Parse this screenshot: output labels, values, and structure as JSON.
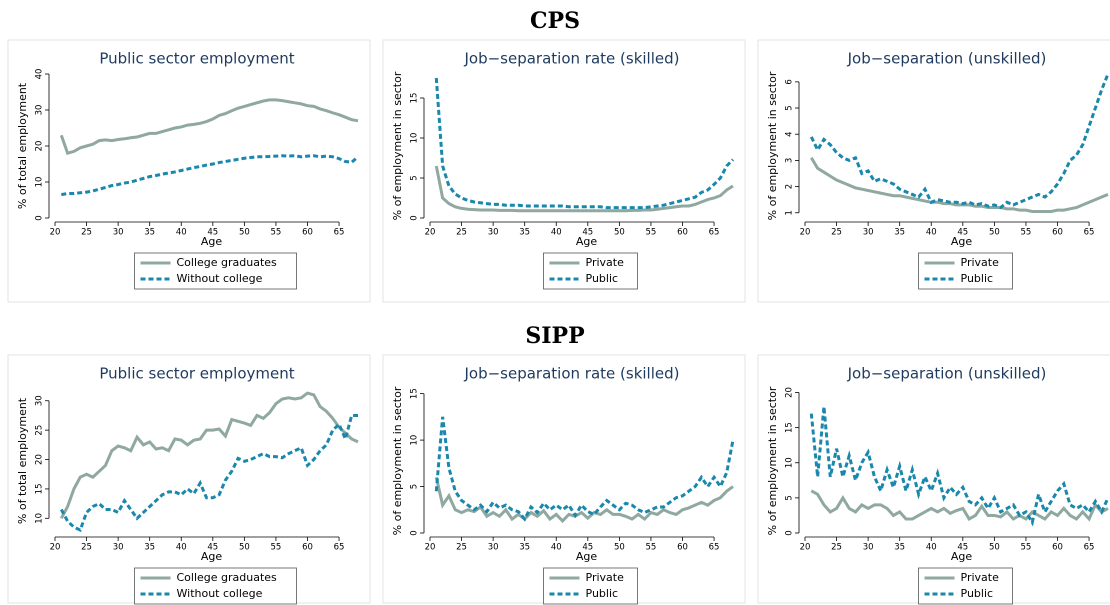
{
  "section_titles": [
    "CPS",
    "SIPP"
  ],
  "chart_data": [
    {
      "type": "line",
      "title": "Public sector employment",
      "xlabel": "Age",
      "ylabel": "% of total employment",
      "x": [
        21,
        22,
        23,
        24,
        25,
        26,
        27,
        28,
        29,
        30,
        31,
        32,
        33,
        34,
        35,
        36,
        37,
        38,
        39,
        40,
        41,
        42,
        43,
        44,
        45,
        46,
        47,
        48,
        49,
        50,
        51,
        52,
        53,
        54,
        55,
        56,
        57,
        58,
        59,
        60,
        61,
        62,
        63,
        64,
        65,
        66,
        67,
        68
      ],
      "xlim": [
        20,
        68
      ],
      "xticks": [
        20,
        25,
        30,
        35,
        40,
        45,
        50,
        55,
        60,
        65
      ],
      "ylim": [
        0,
        40
      ],
      "yticks": [
        0,
        10,
        20,
        30,
        40
      ],
      "series": [
        {
          "name": "College graduates",
          "color": "#8fa8a0",
          "dash": false,
          "values": [
            23,
            18,
            18.5,
            19.5,
            20,
            20.5,
            21.5,
            21.7,
            21.5,
            21.8,
            22,
            22.3,
            22.5,
            23,
            23.5,
            23.5,
            24,
            24.5,
            25,
            25.3,
            25.8,
            26,
            26.3,
            26.8,
            27.5,
            28.5,
            29,
            29.8,
            30.5,
            31,
            31.5,
            32,
            32.5,
            32.8,
            32.8,
            32.6,
            32.3,
            32,
            31.7,
            31.2,
            31,
            30.3,
            29.8,
            29.2,
            28.7,
            28,
            27.3,
            27
          ]
        },
        {
          "name": "Without college",
          "color": "#1a87ad",
          "dash": true,
          "values": [
            6.5,
            6.8,
            6.8,
            7,
            7.2,
            7.5,
            8,
            8.5,
            9,
            9.3,
            9.7,
            10,
            10.5,
            11,
            11.5,
            11.8,
            12.2,
            12.5,
            12.8,
            13.2,
            13.6,
            14,
            14.3,
            14.7,
            15,
            15.4,
            15.7,
            16,
            16.3,
            16.6,
            16.8,
            17,
            17,
            17.1,
            17.2,
            17.3,
            17.2,
            17.3,
            17,
            17.2,
            17.3,
            17,
            17.2,
            17,
            16.5,
            15.7,
            15.5,
            17
          ]
        }
      ]
    },
    {
      "type": "line",
      "title": "Job−separation rate (skilled)",
      "xlabel": "Age",
      "ylabel": "% of employment in sector",
      "x": [
        21,
        22,
        23,
        24,
        25,
        26,
        27,
        28,
        29,
        30,
        31,
        32,
        33,
        34,
        35,
        36,
        37,
        38,
        39,
        40,
        41,
        42,
        43,
        44,
        45,
        46,
        47,
        48,
        49,
        50,
        51,
        52,
        53,
        54,
        55,
        56,
        57,
        58,
        59,
        60,
        61,
        62,
        63,
        64,
        65,
        66,
        67,
        68
      ],
      "xlim": [
        20,
        68
      ],
      "xticks": [
        20,
        25,
        30,
        35,
        40,
        45,
        50,
        55,
        60,
        65
      ],
      "ylim": [
        0,
        18
      ],
      "yticks": [
        0,
        5,
        10,
        15
      ],
      "series": [
        {
          "name": "Private",
          "color": "#8fa8a0",
          "dash": false,
          "values": [
            6.5,
            2.5,
            1.8,
            1.4,
            1.2,
            1.1,
            1.05,
            1,
            1,
            1,
            0.95,
            0.95,
            0.95,
            0.9,
            0.9,
            0.9,
            0.9,
            0.9,
            0.9,
            0.9,
            0.9,
            0.9,
            0.9,
            0.9,
            0.9,
            0.9,
            0.9,
            0.9,
            0.9,
            0.9,
            0.9,
            0.95,
            0.95,
            1,
            1,
            1.1,
            1.2,
            1.3,
            1.4,
            1.5,
            1.5,
            1.7,
            2,
            2.3,
            2.5,
            2.8,
            3.5,
            4
          ]
        },
        {
          "name": "Public",
          "color": "#1a87ad",
          "dash": true,
          "values": [
            17.5,
            6.5,
            4,
            3,
            2.5,
            2.2,
            2,
            1.9,
            1.8,
            1.7,
            1.7,
            1.6,
            1.6,
            1.6,
            1.5,
            1.5,
            1.5,
            1.5,
            1.5,
            1.5,
            1.5,
            1.4,
            1.4,
            1.4,
            1.4,
            1.4,
            1.4,
            1.3,
            1.3,
            1.3,
            1.3,
            1.3,
            1.3,
            1.3,
            1.4,
            1.5,
            1.6,
            1.8,
            2,
            2.2,
            2.4,
            2.6,
            3.2,
            3.5,
            4.2,
            5,
            6.5,
            7.3
          ]
        }
      ]
    },
    {
      "type": "line",
      "title": "Job−separation (unskilled)",
      "xlabel": "Age",
      "ylabel": "% of employment in sector",
      "x": [
        21,
        22,
        23,
        24,
        25,
        26,
        27,
        28,
        29,
        30,
        31,
        32,
        33,
        34,
        35,
        36,
        37,
        38,
        39,
        40,
        41,
        42,
        43,
        44,
        45,
        46,
        47,
        48,
        49,
        50,
        51,
        52,
        53,
        54,
        55,
        56,
        57,
        58,
        59,
        60,
        61,
        62,
        63,
        64,
        65,
        66,
        67,
        68
      ],
      "xlim": [
        20,
        68
      ],
      "xticks": [
        20,
        25,
        30,
        35,
        40,
        45,
        50,
        55,
        60,
        65
      ],
      "ylim": [
        0.8,
        6.3
      ],
      "yticks": [
        1,
        2,
        3,
        4,
        5,
        6
      ],
      "series": [
        {
          "name": "Private",
          "color": "#8fa8a0",
          "dash": false,
          "values": [
            3.1,
            2.7,
            2.55,
            2.4,
            2.25,
            2.15,
            2.05,
            1.95,
            1.9,
            1.85,
            1.8,
            1.75,
            1.7,
            1.65,
            1.65,
            1.6,
            1.55,
            1.5,
            1.45,
            1.4,
            1.4,
            1.35,
            1.35,
            1.3,
            1.3,
            1.3,
            1.25,
            1.25,
            1.2,
            1.2,
            1.2,
            1.15,
            1.15,
            1.1,
            1.1,
            1.05,
            1.05,
            1.05,
            1.05,
            1.1,
            1.1,
            1.15,
            1.2,
            1.3,
            1.4,
            1.5,
            1.6,
            1.7
          ]
        },
        {
          "name": "Public",
          "color": "#1a87ad",
          "dash": true,
          "values": [
            3.9,
            3.4,
            3.8,
            3.6,
            3.3,
            3.1,
            3,
            3.1,
            2.5,
            2.6,
            2.2,
            2.3,
            2.2,
            2.1,
            1.9,
            1.8,
            1.7,
            1.6,
            1.9,
            1.4,
            1.5,
            1.45,
            1.4,
            1.4,
            1.35,
            1.4,
            1.3,
            1.35,
            1.25,
            1.3,
            1.2,
            1.4,
            1.3,
            1.4,
            1.5,
            1.6,
            1.7,
            1.6,
            1.8,
            2.1,
            2.5,
            3,
            3.2,
            3.6,
            4.3,
            5,
            5.7,
            6.3
          ]
        }
      ]
    },
    {
      "type": "line",
      "title": "Public sector employment",
      "xlabel": "Age",
      "ylabel": "% of total employment",
      "x": [
        21,
        22,
        23,
        24,
        25,
        26,
        27,
        28,
        29,
        30,
        31,
        32,
        33,
        34,
        35,
        36,
        37,
        38,
        39,
        40,
        41,
        42,
        43,
        44,
        45,
        46,
        47,
        48,
        49,
        50,
        51,
        52,
        53,
        54,
        55,
        56,
        57,
        58,
        59,
        60,
        61,
        62,
        63,
        64,
        65,
        66,
        67,
        68
      ],
      "xlim": [
        20,
        68
      ],
      "xticks": [
        20,
        25,
        30,
        35,
        40,
        45,
        50,
        55,
        60,
        65
      ],
      "ylim": [
        7.5,
        32
      ],
      "yticks": [
        10,
        15,
        20,
        25,
        30
      ],
      "series": [
        {
          "name": "College graduates",
          "color": "#8fa8a0",
          "dash": false,
          "values": [
            10,
            12,
            15,
            17,
            17.5,
            17,
            18,
            19,
            21.5,
            22.3,
            22,
            21.5,
            23.8,
            22.5,
            23,
            21.8,
            22,
            21.5,
            23.5,
            23.3,
            22.5,
            23.3,
            23.5,
            25,
            25,
            25.2,
            24,
            26.8,
            26.5,
            26.2,
            25.8,
            27.5,
            27,
            28,
            29.5,
            30.3,
            30.5,
            30.3,
            30.5,
            31.3,
            31,
            29,
            28.2,
            27,
            25.5,
            24.5,
            23.5,
            23
          ]
        },
        {
          "name": "Without college",
          "color": "#1a87ad",
          "dash": true,
          "values": [
            11.5,
            9.5,
            8.5,
            8,
            11,
            12,
            12.5,
            11.5,
            11.5,
            11,
            13,
            11.5,
            10,
            11,
            12,
            13,
            14,
            14.5,
            14.5,
            14,
            15,
            14.2,
            16,
            13.5,
            13.5,
            14,
            16.5,
            18,
            20.2,
            19.7,
            20,
            20.5,
            21,
            20.5,
            20.5,
            20.3,
            21,
            21.5,
            22,
            19,
            20,
            21.5,
            22.5,
            25,
            26,
            23.5,
            27.5,
            27.5
          ]
        }
      ]
    },
    {
      "type": "line",
      "title": "Job−separation rate (skilled)",
      "xlabel": "Age",
      "ylabel": "% of employment in sector",
      "x": [
        21,
        22,
        23,
        24,
        25,
        26,
        27,
        28,
        29,
        30,
        31,
        32,
        33,
        34,
        35,
        36,
        37,
        38,
        39,
        40,
        41,
        42,
        43,
        44,
        45,
        46,
        47,
        48,
        49,
        50,
        51,
        52,
        53,
        54,
        55,
        56,
        57,
        58,
        59,
        60,
        61,
        62,
        63,
        64,
        65,
        66,
        67,
        68
      ],
      "xlim": [
        20,
        68
      ],
      "xticks": [
        20,
        25,
        30,
        35,
        40,
        45,
        50,
        55,
        60,
        65
      ],
      "ylim": [
        0,
        15.5
      ],
      "yticks": [
        0,
        5,
        10,
        15
      ],
      "series": [
        {
          "name": "Private",
          "color": "#8fa8a0",
          "dash": false,
          "values": [
            6,
            3,
            4,
            2.5,
            2.2,
            2.5,
            2.3,
            2.8,
            1.8,
            2.2,
            1.8,
            2.5,
            1.5,
            2,
            1.5,
            2.2,
            1.8,
            2.4,
            1.5,
            2,
            1.3,
            2,
            1.8,
            2.2,
            1.6,
            2.2,
            2,
            2.5,
            2,
            2,
            1.8,
            1.5,
            2,
            1.5,
            2.2,
            2,
            2.5,
            2.2,
            2,
            2.5,
            2.7,
            3,
            3.3,
            3,
            3.5,
            3.8,
            4.5,
            5
          ]
        },
        {
          "name": "Public",
          "color": "#1a87ad",
          "dash": true,
          "values": [
            4.5,
            12.5,
            7,
            4.5,
            3.5,
            3,
            2.5,
            3,
            2.3,
            3.3,
            2.7,
            3,
            2.5,
            2.3,
            1.5,
            2.8,
            2.2,
            3.2,
            2.5,
            3,
            2.5,
            3,
            1.9,
            3,
            2.3,
            2,
            2.8,
            3.5,
            3,
            2.5,
            3.2,
            3,
            2.5,
            2.2,
            2.5,
            2.8,
            2.8,
            3.3,
            3.8,
            4,
            4.5,
            5,
            6,
            5,
            6,
            5,
            6.5,
            10
          ]
        }
      ]
    },
    {
      "type": "line",
      "title": "Job−separation (unskilled)",
      "xlabel": "Age",
      "ylabel": "% of employment in sector",
      "x": [
        21,
        22,
        23,
        24,
        25,
        26,
        27,
        28,
        29,
        30,
        31,
        32,
        33,
        34,
        35,
        36,
        37,
        38,
        39,
        40,
        41,
        42,
        43,
        44,
        45,
        46,
        47,
        48,
        49,
        50,
        51,
        52,
        53,
        54,
        55,
        56,
        57,
        58,
        59,
        60,
        61,
        62,
        63,
        64,
        65,
        66,
        67,
        68
      ],
      "xlim": [
        20,
        68
      ],
      "xticks": [
        20,
        25,
        30,
        35,
        40,
        45,
        50,
        55,
        60,
        65
      ],
      "ylim": [
        0,
        20.5
      ],
      "yticks": [
        0,
        5,
        10,
        15,
        20
      ],
      "series": [
        {
          "name": "Private",
          "color": "#8fa8a0",
          "dash": false,
          "values": [
            6,
            5.5,
            4,
            3,
            3.5,
            5,
            3.5,
            3,
            4,
            3.5,
            4,
            4,
            3.5,
            2.5,
            3,
            2,
            2,
            2.5,
            3,
            3.5,
            3,
            3.5,
            2.8,
            3.2,
            3.5,
            2,
            2.5,
            3.8,
            2.5,
            2.5,
            2.3,
            3,
            2,
            2.5,
            2,
            3,
            2.5,
            2,
            3,
            2.5,
            3.5,
            2.5,
            2,
            3,
            2,
            4,
            3,
            3.5
          ]
        },
        {
          "name": "Public",
          "color": "#1a87ad",
          "dash": true,
          "values": [
            17,
            8,
            18,
            8,
            12,
            8,
            11,
            7.5,
            10,
            11.5,
            8,
            6,
            9,
            6.5,
            9.5,
            6,
            9,
            5.5,
            8,
            6,
            8.5,
            5,
            6.5,
            5.5,
            6.5,
            4.5,
            4,
            5,
            3.5,
            5,
            3,
            3.5,
            4,
            2.5,
            3,
            1.5,
            5.5,
            3,
            4.5,
            6,
            7,
            4,
            3.5,
            4,
            3,
            4.5,
            3,
            5
          ]
        }
      ]
    }
  ]
}
